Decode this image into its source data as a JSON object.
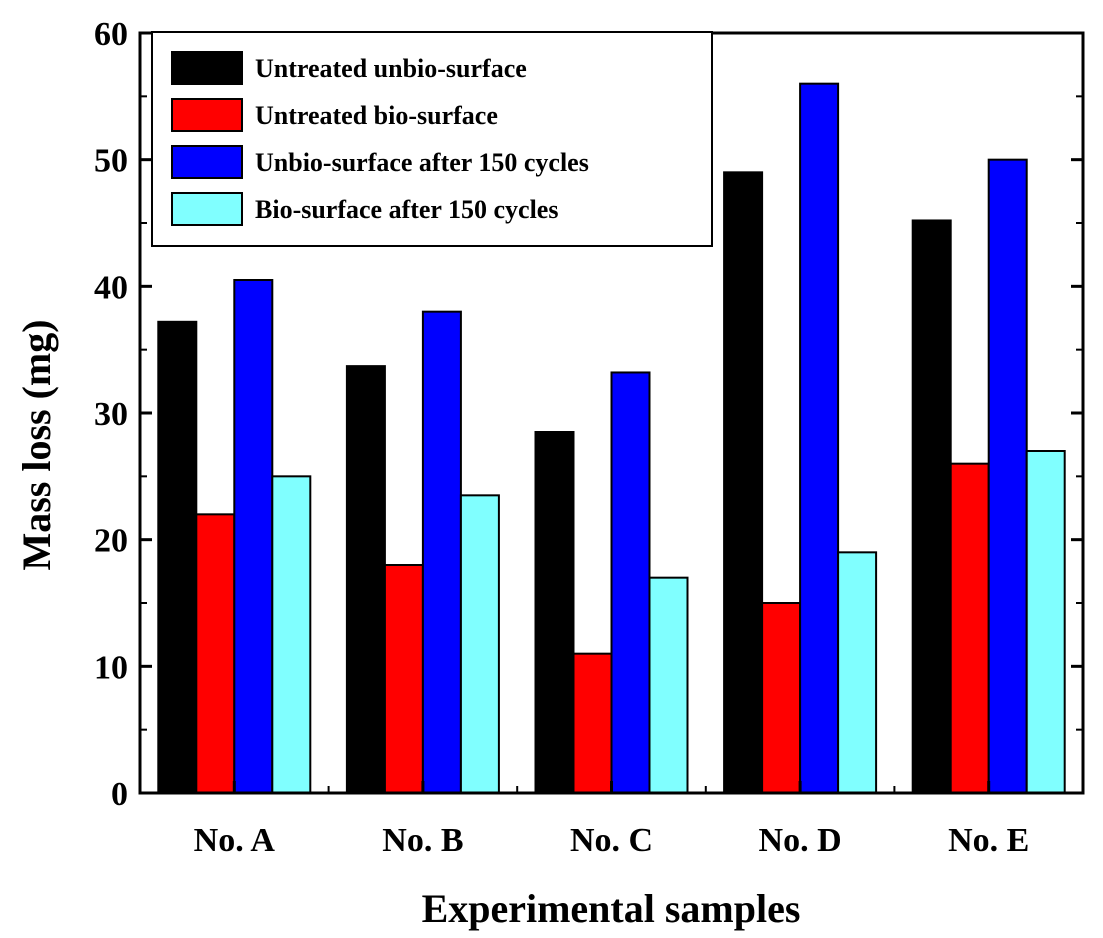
{
  "chart_data": {
    "type": "bar",
    "xlabel": "Experimental samples",
    "ylabel": "Mass loss (mg)",
    "ylim": [
      0,
      60
    ],
    "yticks": [
      0,
      10,
      20,
      30,
      40,
      50,
      60
    ],
    "categories": [
      "No. A",
      "No. B",
      "No. C",
      "No. D",
      "No. E"
    ],
    "series": [
      {
        "name": "Untreated unbio-surface",
        "color": "#000000",
        "values": [
          37.2,
          33.7,
          28.5,
          49.0,
          45.2
        ]
      },
      {
        "name": "Untreated bio-surface",
        "color": "#ff0000",
        "values": [
          22.0,
          18.0,
          11.0,
          15.0,
          26.0
        ]
      },
      {
        "name": "Unbio-surface after 150 cycles",
        "color": "#0000ff",
        "values": [
          40.5,
          38.0,
          33.2,
          56.0,
          50.0
        ]
      },
      {
        "name": "Bio-surface after 150 cycles",
        "color": "#80ffff",
        "values": [
          25.0,
          23.5,
          17.0,
          19.0,
          27.0
        ]
      }
    ],
    "legend": "top-left",
    "grid": false
  }
}
